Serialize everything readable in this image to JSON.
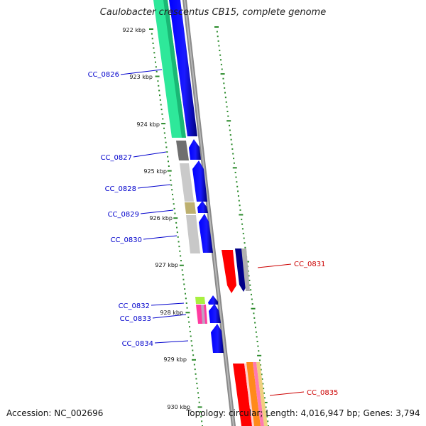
{
  "title": "Caulobacter crescentus CB15, complete genome",
  "footer": {
    "accession": "Accession: NC_002696",
    "summary": "Topology: circular; Length: 4,016,947 bp; Genes: 3,794"
  },
  "ruler_labels": [
    "922 kbp",
    "923 kbp",
    "924 kbp",
    "925 kbp",
    "926 kbp",
    "927 kbp",
    "928 kbp",
    "929 kbp",
    "930 kbp"
  ],
  "genes_forward": [
    {
      "label": "CC_0826",
      "cog_color": "#2ee89a"
    },
    {
      "label": "CC_0827",
      "cog_color": "#707070"
    },
    {
      "label": "CC_0828",
      "cog_color": "#c8c8c8"
    },
    {
      "label": "CC_0829",
      "cog_color": "#bdb070"
    },
    {
      "label": "CC_0830",
      "cog_color": "#c8c8c8"
    },
    {
      "label": "CC_0832",
      "cog_color": "#a8f040"
    },
    {
      "label": "CC_0833",
      "cog_color": "#ff3aa0"
    },
    {
      "label": "CC_0834",
      "cog_color": "#ffffff"
    }
  ],
  "genes_reverse": [
    {
      "label": "CC_0831",
      "cog_color": "#ff0000"
    },
    {
      "label": "CC_0835",
      "cog_color": "#ff0000"
    }
  ],
  "colors": {
    "forward_label": "#0000cc",
    "reverse_label": "#cc0000",
    "cds": "#0000ff",
    "backbone": "#8a8a8a",
    "ruler": "#2a8a2a"
  }
}
